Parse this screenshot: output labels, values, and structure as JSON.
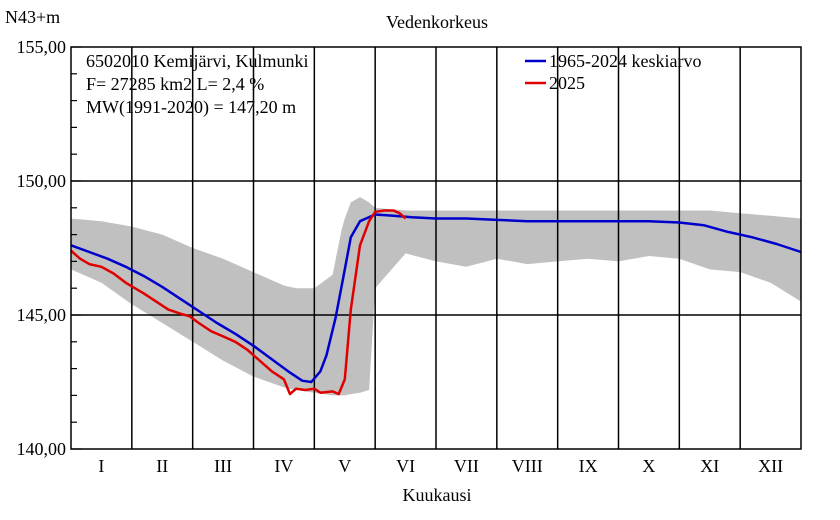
{
  "chart_data": {
    "type": "line",
    "title": "Vedenkorkeus",
    "ylabel": "N43+m",
    "xlabel": "Kuukausi",
    "ylim": [
      140,
      155
    ],
    "y_ticks": [
      "140,00",
      "145,00",
      "150,00",
      "155,00"
    ],
    "months": [
      "I",
      "II",
      "III",
      "IV",
      "V",
      "VI",
      "VII",
      "VIII",
      "IX",
      "X",
      "XI",
      "XII"
    ],
    "grid": true,
    "legend_position": "top-right",
    "info_lines": [
      "6502010 Kemijärvi, Kulmunki",
      "F=  27285 km2 L=  2,4 %",
      "MW(1991-2020) = 147,20 m"
    ],
    "colors": {
      "mean": "#0000cc",
      "current": "#e00000",
      "range": "#c0c0c0"
    },
    "series": [
      {
        "name": "1965-2024 keskiarvo",
        "x": [
          0,
          0.3,
          0.6,
          0.9,
          1.2,
          1.5,
          1.8,
          2.1,
          2.4,
          2.7,
          3.0,
          3.3,
          3.6,
          3.8,
          3.95,
          4.1,
          4.2,
          4.35,
          4.5,
          4.6,
          4.75,
          5.0,
          5.3,
          5.6,
          6.0,
          6.5,
          7.0,
          7.5,
          8.0,
          8.5,
          9.0,
          9.5,
          10.0,
          10.4,
          10.8,
          11.2,
          11.6,
          12.0
        ],
        "values": [
          147.6,
          147.35,
          147.1,
          146.8,
          146.45,
          146.05,
          145.6,
          145.15,
          144.7,
          144.3,
          143.85,
          143.35,
          142.85,
          142.55,
          142.5,
          142.9,
          143.5,
          144.9,
          146.7,
          147.9,
          148.5,
          148.75,
          148.7,
          148.65,
          148.6,
          148.6,
          148.55,
          148.5,
          148.5,
          148.5,
          148.5,
          148.5,
          148.45,
          148.35,
          148.1,
          147.9,
          147.65,
          147.35
        ]
      },
      {
        "name": "2025",
        "x": [
          0,
          0.15,
          0.3,
          0.5,
          0.7,
          0.9,
          1.05,
          1.2,
          1.4,
          1.6,
          1.8,
          1.95,
          2.1,
          2.3,
          2.5,
          2.7,
          2.9,
          3.1,
          3.3,
          3.5,
          3.6,
          3.7,
          3.85,
          4.0,
          4.1,
          4.3,
          4.4,
          4.5,
          4.6,
          4.75,
          4.9,
          5.0,
          5.15,
          5.3,
          5.4,
          5.5
        ],
        "values": [
          147.4,
          147.1,
          146.9,
          146.8,
          146.55,
          146.2,
          146.0,
          145.8,
          145.5,
          145.2,
          145.05,
          144.95,
          144.7,
          144.4,
          144.2,
          144.0,
          143.7,
          143.3,
          142.9,
          142.6,
          142.05,
          142.25,
          142.2,
          142.25,
          142.1,
          142.15,
          142.05,
          142.6,
          145.2,
          147.6,
          148.5,
          148.85,
          148.9,
          148.9,
          148.8,
          148.6
        ]
      }
    ],
    "range_band": {
      "x": [
        0,
        0.5,
        1.0,
        1.5,
        2.0,
        2.5,
        3.0,
        3.5,
        3.7,
        4.0,
        4.3,
        4.45,
        4.5,
        4.6,
        4.75,
        4.9,
        5.0,
        5.5,
        6.0,
        6.5,
        7.0,
        7.5,
        8.0,
        8.5,
        9.0,
        9.5,
        10.0,
        10.5,
        11.0,
        11.5,
        12.0
      ],
      "upper": [
        148.6,
        148.5,
        148.3,
        148.0,
        147.5,
        147.1,
        146.6,
        146.1,
        146.0,
        146.0,
        146.5,
        148.2,
        148.6,
        149.2,
        149.4,
        149.2,
        149.0,
        148.9,
        148.9,
        148.9,
        148.9,
        148.9,
        148.9,
        148.9,
        148.9,
        148.9,
        148.9,
        148.9,
        148.8,
        148.7,
        148.6
      ],
      "lower": [
        146.7,
        146.2,
        145.4,
        144.7,
        144.0,
        143.3,
        142.7,
        142.3,
        142.2,
        142.1,
        142.0,
        142.0,
        142.0,
        142.05,
        142.1,
        142.2,
        146.0,
        147.3,
        147.0,
        146.8,
        147.1,
        146.9,
        147.0,
        147.1,
        147.0,
        147.2,
        147.1,
        146.7,
        146.6,
        146.2,
        145.5
      ]
    }
  }
}
